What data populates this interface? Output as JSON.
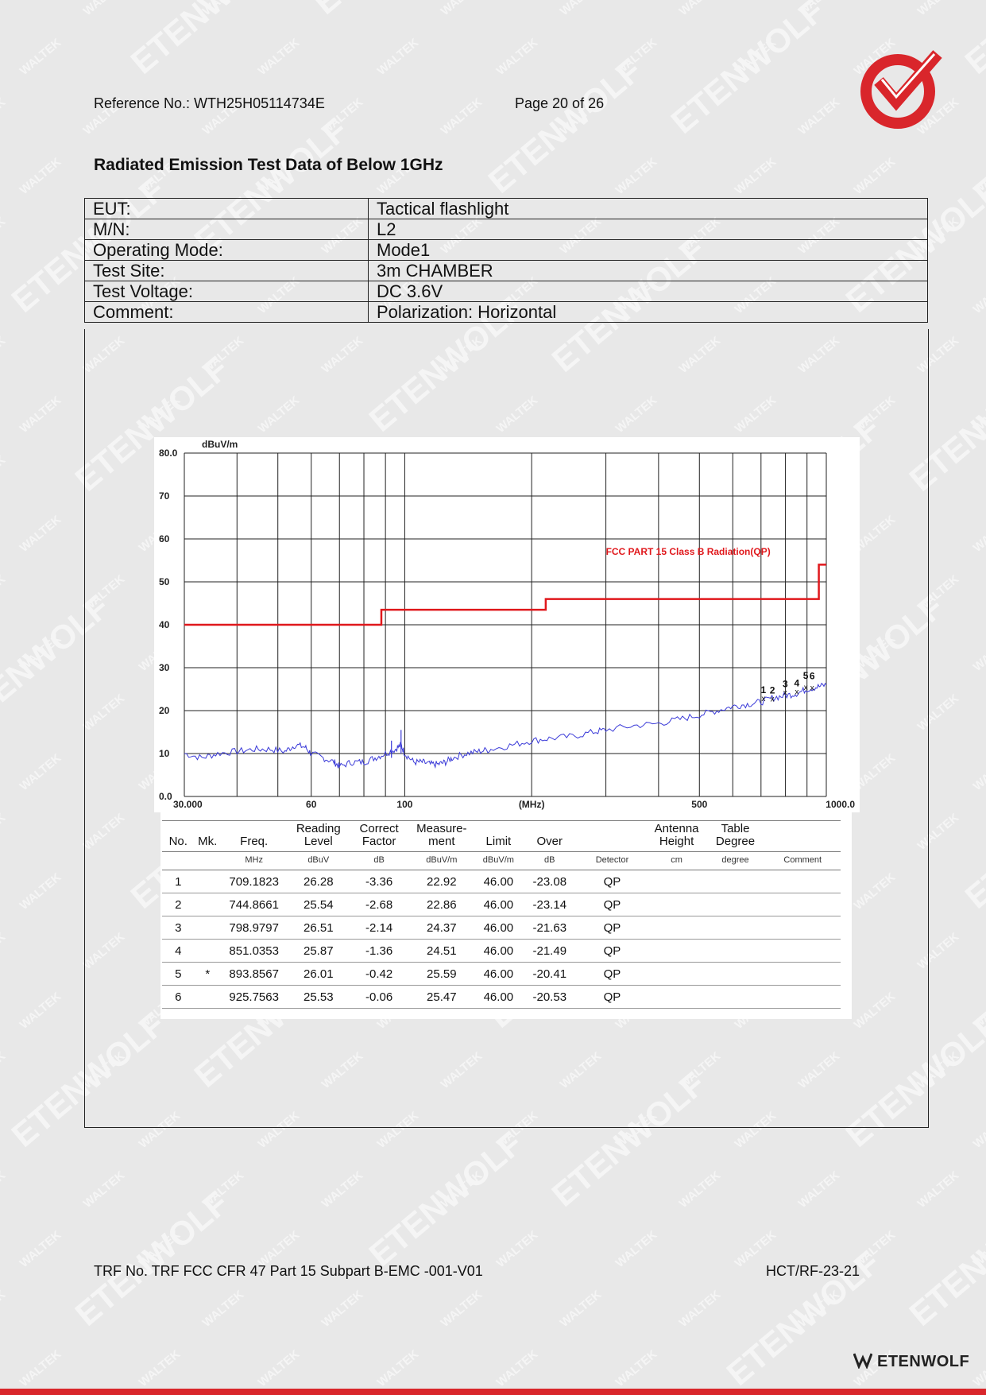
{
  "header": {
    "reference": "Reference No.: WTH25H05114734E",
    "page": "Page 20 of 26"
  },
  "title": "Radiated Emission Test Data of Below 1GHz",
  "info": [
    {
      "label": "EUT:",
      "value": "Tactical flashlight"
    },
    {
      "label": "M/N:",
      "value": "L2"
    },
    {
      "label": "Operating Mode:",
      "value": "Mode1"
    },
    {
      "label": "Test Site:",
      "value": "3m CHAMBER"
    },
    {
      "label": "Test Voltage:",
      "value": "DC 3.6V"
    },
    {
      "label": "Comment:",
      "value": "Polarization: Horizontal"
    }
  ],
  "chart_data": {
    "type": "line",
    "ylabel": "dBuV/m",
    "xlabel": "(MHz)",
    "xscale": "log",
    "xlim": [
      30,
      1000
    ],
    "ylim": [
      0,
      80
    ],
    "y_ticks": [
      "80.0",
      "70",
      "60",
      "50",
      "40",
      "30",
      "20",
      "10",
      "0.0"
    ],
    "x_ticks": [
      {
        "v": 30,
        "label": "30.000"
      },
      {
        "v": 60,
        "label": "60"
      },
      {
        "v": 100,
        "label": "100"
      },
      {
        "v": 200,
        "label": "(MHz)"
      },
      {
        "v": 500,
        "label": "500"
      },
      {
        "v": 1000,
        "label": "1000.0"
      }
    ],
    "limit_label": "FCC PART 15 Class B Radiation(QP)",
    "limit_color": "#e0181c",
    "trace_color": "#3a3ad8",
    "grid": true,
    "series": [
      {
        "name": "FCC PART 15 Class B Radiation(QP)",
        "points": [
          [
            30,
            40
          ],
          [
            88,
            40
          ],
          [
            88,
            43.5
          ],
          [
            216,
            43.5
          ],
          [
            216,
            46
          ],
          [
            960,
            46
          ],
          [
            960,
            54
          ],
          [
            1000,
            54
          ]
        ]
      },
      {
        "name": "",
        "points": [
          [
            30,
            10
          ],
          [
            33,
            9
          ],
          [
            36,
            10
          ],
          [
            40,
            10.5
          ],
          [
            44,
            11
          ],
          [
            48,
            11
          ],
          [
            52,
            10.5
          ],
          [
            55,
            12
          ],
          [
            58,
            11.5
          ],
          [
            60,
            10
          ],
          [
            64,
            9
          ],
          [
            68,
            8
          ],
          [
            70,
            7
          ],
          [
            75,
            8
          ],
          [
            80,
            8
          ],
          [
            85,
            9
          ],
          [
            90,
            10
          ],
          [
            95,
            11
          ],
          [
            98,
            12
          ],
          [
            100,
            10
          ],
          [
            105,
            8
          ],
          [
            110,
            8
          ],
          [
            115,
            7.5
          ],
          [
            120,
            7.5
          ],
          [
            125,
            8
          ],
          [
            130,
            9
          ],
          [
            140,
            10
          ],
          [
            150,
            10.5
          ],
          [
            160,
            11
          ],
          [
            180,
            12
          ],
          [
            200,
            13
          ],
          [
            220,
            13.5
          ],
          [
            250,
            14
          ],
          [
            280,
            15
          ],
          [
            300,
            15.5
          ],
          [
            350,
            16.5
          ],
          [
            400,
            17
          ],
          [
            450,
            18
          ],
          [
            500,
            19
          ],
          [
            550,
            20
          ],
          [
            600,
            21
          ],
          [
            650,
            21.5
          ],
          [
            700,
            22
          ],
          [
            750,
            23
          ],
          [
            800,
            23.5
          ],
          [
            850,
            24
          ],
          [
            900,
            25
          ],
          [
            950,
            25.5
          ],
          [
            1000,
            26
          ]
        ]
      }
    ],
    "markers": [
      {
        "no": "1",
        "freq": 709.1823,
        "level": 22.92
      },
      {
        "no": "2",
        "freq": 744.8661,
        "level": 22.86
      },
      {
        "no": "3",
        "freq": 798.9797,
        "level": 24.37
      },
      {
        "no": "4",
        "freq": 851.0353,
        "level": 24.51
      },
      {
        "no": "5",
        "freq": 893.8567,
        "level": 25.59
      },
      {
        "no": "6",
        "freq": 925.7563,
        "level": 25.47
      }
    ]
  },
  "table": {
    "headers": [
      "No.",
      "Mk.",
      "Freq.",
      "Reading Level",
      "Correct Factor",
      "Measure-ment",
      "Limit",
      "Over",
      "",
      "Antenna Height",
      "Table Degree",
      ""
    ],
    "units": [
      "",
      "",
      "MHz",
      "dBuV",
      "dB",
      "dBuV/m",
      "dBuV/m",
      "dB",
      "Detector",
      "cm",
      "degree",
      "Comment"
    ],
    "rows": [
      [
        "1",
        "",
        "709.1823",
        "26.28",
        "-3.36",
        "22.92",
        "46.00",
        "-23.08",
        "QP",
        "",
        "",
        ""
      ],
      [
        "2",
        "",
        "744.8661",
        "25.54",
        "-2.68",
        "22.86",
        "46.00",
        "-23.14",
        "QP",
        "",
        "",
        ""
      ],
      [
        "3",
        "",
        "798.9797",
        "26.51",
        "-2.14",
        "24.37",
        "46.00",
        "-21.63",
        "QP",
        "",
        "",
        ""
      ],
      [
        "4",
        "",
        "851.0353",
        "25.87",
        "-1.36",
        "24.51",
        "46.00",
        "-21.49",
        "QP",
        "",
        "",
        ""
      ],
      [
        "5",
        "*",
        "893.8567",
        "26.01",
        "-0.42",
        "25.59",
        "46.00",
        "-20.41",
        "QP",
        "",
        "",
        ""
      ],
      [
        "6",
        "",
        "925.7563",
        "25.53",
        "-0.06",
        "25.47",
        "46.00",
        "-20.53",
        "QP",
        "",
        "",
        ""
      ]
    ]
  },
  "footer": {
    "trf": "TRF No. TRF FCC CFR 47 Part 15 Subpart B-EMC -001-V01",
    "code": "HCT/RF-23-21",
    "brand": "ETENWOLF"
  },
  "watermark": [
    "WALTEK",
    "ETENWOLF"
  ],
  "colors": {
    "accent": "#d9262b"
  }
}
